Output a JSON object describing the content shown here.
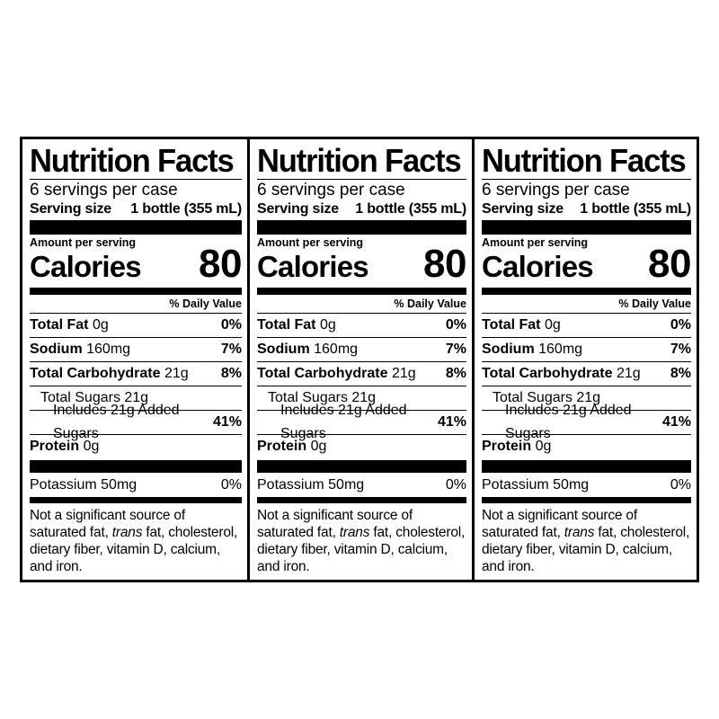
{
  "panels": [
    {
      "title": "Nutrition Facts",
      "servings_per_container": "6 servings per case",
      "serving_size_label": "Serving size",
      "serving_size_value": "1 bottle (355 mL)",
      "amount_per_serving": "Amount per serving",
      "calories_label": "Calories",
      "calories_value": "80",
      "daily_value_header": "% Daily Value",
      "total_fat_label": "Total Fat",
      "total_fat_amount": "0g",
      "total_fat_dv": "0%",
      "sodium_label": "Sodium",
      "sodium_amount": "160mg",
      "sodium_dv": "7%",
      "carb_label": "Total Carbohydrate",
      "carb_amount": "21g",
      "carb_dv": "8%",
      "total_sugars": "Total Sugars 21g",
      "added_sugars": "Includes 21g Added Sugars",
      "added_sugars_dv": "41%",
      "protein_label": "Protein",
      "protein_amount": "0g",
      "potassium": "Potassium 50mg",
      "potassium_dv": "0%",
      "footnote_start": "Not a significant source of saturated fat,",
      "footnote_trans": "trans",
      "footnote_end": "fat, cholesterol, dietary fiber, vitamin D, calcium, and iron."
    },
    {
      "title": "Nutrition Facts",
      "servings_per_container": "6 servings per case",
      "serving_size_label": "Serving size",
      "serving_size_value": "1 bottle (355 mL)",
      "amount_per_serving": "Amount per serving",
      "calories_label": "Calories",
      "calories_value": "80",
      "daily_value_header": "% Daily Value",
      "total_fat_label": "Total Fat",
      "total_fat_amount": "0g",
      "total_fat_dv": "0%",
      "sodium_label": "Sodium",
      "sodium_amount": "160mg",
      "sodium_dv": "7%",
      "carb_label": "Total Carbohydrate",
      "carb_amount": "21g",
      "carb_dv": "8%",
      "total_sugars": "Total Sugars 21g",
      "added_sugars": "Includes 21g Added Sugars",
      "added_sugars_dv": "41%",
      "protein_label": "Protein",
      "protein_amount": "0g",
      "potassium": "Potassium 50mg",
      "potassium_dv": "0%",
      "footnote_start": "Not a significant source of saturated fat,",
      "footnote_trans": "trans",
      "footnote_end": "fat, cholesterol, dietary fiber, vitamin D, calcium, and iron."
    },
    {
      "title": "Nutrition Facts",
      "servings_per_container": "6 servings per case",
      "serving_size_label": "Serving size",
      "serving_size_value": "1 bottle (355 mL)",
      "amount_per_serving": "Amount per serving",
      "calories_label": "Calories",
      "calories_value": "80",
      "daily_value_header": "% Daily Value",
      "total_fat_label": "Total Fat",
      "total_fat_amount": "0g",
      "total_fat_dv": "0%",
      "sodium_label": "Sodium",
      "sodium_amount": "160mg",
      "sodium_dv": "7%",
      "carb_label": "Total Carbohydrate",
      "carb_amount": "21g",
      "carb_dv": "8%",
      "total_sugars": "Total Sugars 21g",
      "added_sugars": "Includes 21g Added Sugars",
      "added_sugars_dv": "41%",
      "protein_label": "Protein",
      "protein_amount": "0g",
      "potassium": "Potassium 50mg",
      "potassium_dv": "0%",
      "footnote_start": "Not a significant source of saturated fat,",
      "footnote_trans": "trans",
      "footnote_end": "fat, cholesterol, dietary fiber, vitamin D, calcium, and iron."
    }
  ]
}
